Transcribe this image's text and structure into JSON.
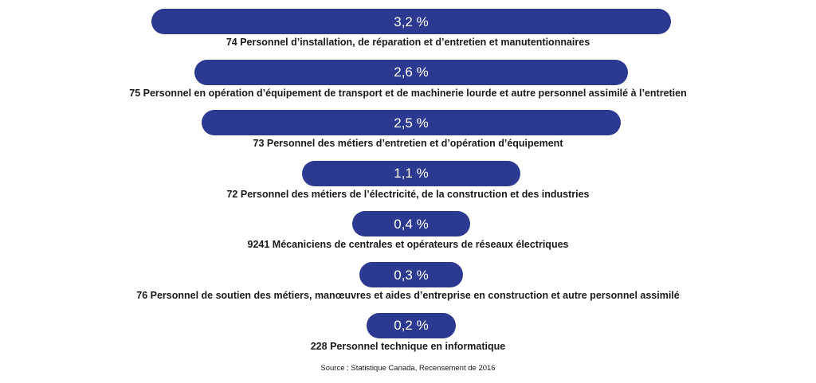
{
  "chart_data": {
    "type": "bar",
    "orientation": "horizontal",
    "alignment": "centered",
    "title": "",
    "xlabel": "",
    "ylabel": "",
    "xlim": [
      0,
      3.2
    ],
    "categories": [
      "74 Personnel d’installation, de réparation et d’entretien et manutentionnaires",
      "75 Personnel en opération d’équipement de transport et de machinerie lourde et autre personnel assimilé à l’entretien",
      "73 Personnel des métiers d’entretien et d’opération d’équipement",
      "72 Personnel des métiers de l’électricité, de la construction et des industries",
      "9241 Mécaniciens de centrales et opérateurs de réseaux électriques",
      "76 Personnel de soutien des métiers, manœuvres et aides d’entreprise en construction et autre personnel assimilé",
      "228 Personnel technique en informatique"
    ],
    "values": [
      3.2,
      2.6,
      2.5,
      1.1,
      0.4,
      0.3,
      0.2
    ],
    "value_labels": [
      "3,2 %",
      "2,6 %",
      "2,5 %",
      "1,1 %",
      "0,4 %",
      "0,3 %",
      "0,2 %"
    ],
    "bar_color": "#2b3990",
    "source": "Source : Statistique Canada, Recensement de 2016"
  }
}
